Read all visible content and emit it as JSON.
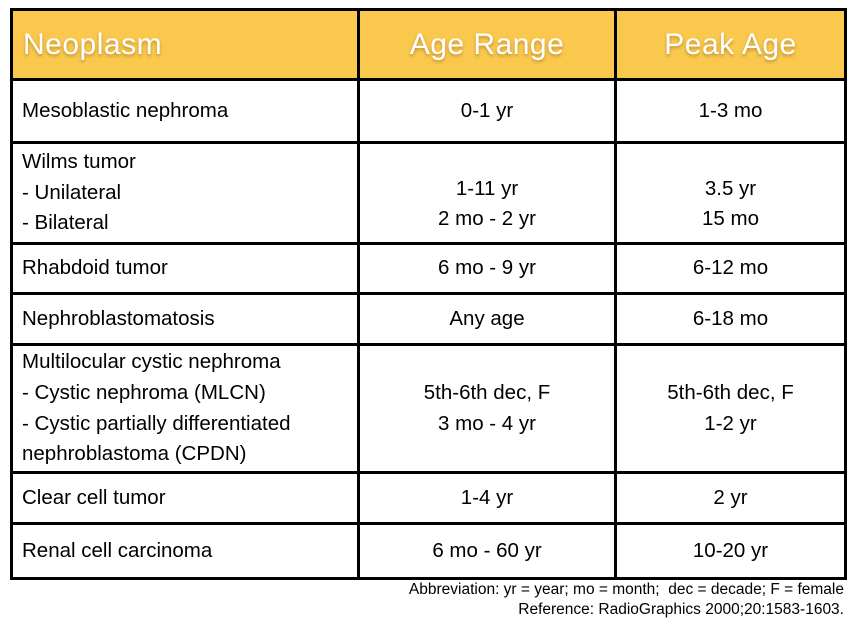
{
  "table": {
    "columns": [
      {
        "label": "Neoplasm"
      },
      {
        "label": "Age Range"
      },
      {
        "label": "Peak Age"
      }
    ],
    "rows": [
      {
        "neoplasm": [
          "Mesoblastic nephroma"
        ],
        "age_range": [
          "0-1 yr"
        ],
        "peak_age": [
          "1-3 mo"
        ]
      },
      {
        "neoplasm": [
          "Wilms tumor",
          "- Unilateral",
          "- Bilateral"
        ],
        "age_range": [
          "1-11 yr",
          "2 mo - 2 yr"
        ],
        "peak_age": [
          "3.5 yr",
          "15 mo"
        ]
      },
      {
        "neoplasm": [
          "Rhabdoid tumor"
        ],
        "age_range": [
          "6 mo - 9 yr"
        ],
        "peak_age": [
          "6-12 mo"
        ]
      },
      {
        "neoplasm": [
          "Nephroblastomatosis"
        ],
        "age_range": [
          "Any age"
        ],
        "peak_age": [
          "6-18 mo"
        ]
      },
      {
        "neoplasm": [
          "Multilocular cystic nephroma",
          "- Cystic nephroma (MLCN)",
          "- Cystic partially differentiated",
          "nephroblastoma (CPDN)"
        ],
        "age_range": [
          "5th-6th dec, F",
          "3 mo - 4 yr"
        ],
        "peak_age": [
          "5th-6th dec, F",
          "1-2 yr"
        ]
      },
      {
        "neoplasm": [
          "Clear cell tumor"
        ],
        "age_range": [
          "1-4 yr"
        ],
        "peak_age": [
          "2 yr"
        ]
      },
      {
        "neoplasm": [
          "Renal cell carcinoma"
        ],
        "age_range": [
          "6 mo - 60 yr"
        ],
        "peak_age": [
          "10-20 yr"
        ]
      }
    ]
  },
  "footnotes": [
    "Abbreviation: yr = year; mo = month;  dec = decade; F = female",
    "Reference: RadioGraphics 2000;20:1583-1603."
  ],
  "colors": {
    "header_bg": "#fbc84e",
    "header_text": "#ffffff",
    "border": "#000000",
    "body_text": "#000000"
  }
}
